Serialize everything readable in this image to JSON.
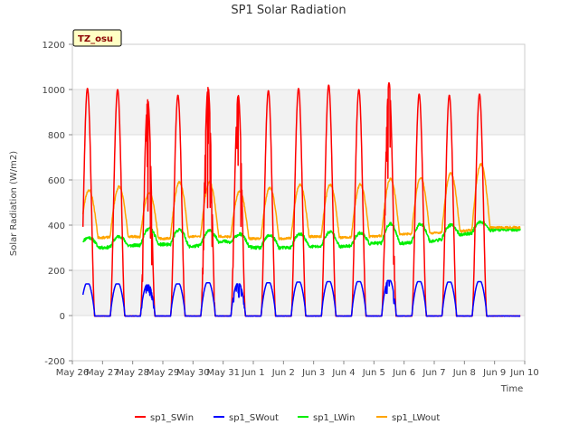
{
  "chart_data": {
    "type": "line",
    "title": "SP1 Solar Radiation",
    "xlabel": "Time",
    "ylabel": "Solar Radiation (W/m2)",
    "station_label": "TZ_osu",
    "ylim": [
      -200,
      1200
    ],
    "yticks": [
      -200,
      0,
      200,
      400,
      600,
      800,
      1000,
      1200
    ],
    "xlim": [
      0,
      15
    ],
    "xtick_labels": [
      "May 26",
      "May 27",
      "May 28",
      "May 29",
      "May 30",
      "May 31",
      "Jun 1",
      "Jun 2",
      "Jun 3",
      "Jun 4",
      "Jun 5",
      "Jun 6",
      "Jun 7",
      "Jun 8",
      "Jun 9",
      "Jun 10"
    ],
    "x_units": "days since May 26",
    "data_start": 0.35,
    "data_end": 14.85,
    "grid": true,
    "legend_position": "bottom",
    "series": [
      {
        "name": "sp1_SWin",
        "color": "#ff0000",
        "daily_peaks": [
          1005,
          1000,
          955,
          975,
          1010,
          975,
          995,
          1005,
          1020,
          1000,
          1030,
          980,
          975,
          980
        ]
      },
      {
        "name": "sp1_SWout",
        "color": "#0000ff",
        "daily_peaks": [
          140,
          140,
          135,
          140,
          145,
          140,
          145,
          148,
          150,
          150,
          155,
          150,
          148,
          150
        ]
      },
      {
        "name": "sp1_LWin",
        "color": "#00ee00",
        "daily_night": [
          320,
          300,
          310,
          315,
          305,
          330,
          300,
          300,
          305,
          305,
          320,
          320,
          330,
          360,
          380
        ],
        "daily_peaks": [
          345,
          350,
          385,
          380,
          375,
          360,
          355,
          360,
          370,
          365,
          405,
          405,
          400,
          415
        ]
      },
      {
        "name": "sp1_LWout",
        "color": "#ffa500",
        "daily_night": [
          345,
          345,
          350,
          340,
          350,
          350,
          340,
          340,
          350,
          345,
          350,
          360,
          365,
          375,
          390
        ],
        "daily_peaks": [
          555,
          570,
          545,
          590,
          590,
          550,
          565,
          580,
          580,
          580,
          605,
          610,
          630,
          670
        ]
      }
    ]
  }
}
